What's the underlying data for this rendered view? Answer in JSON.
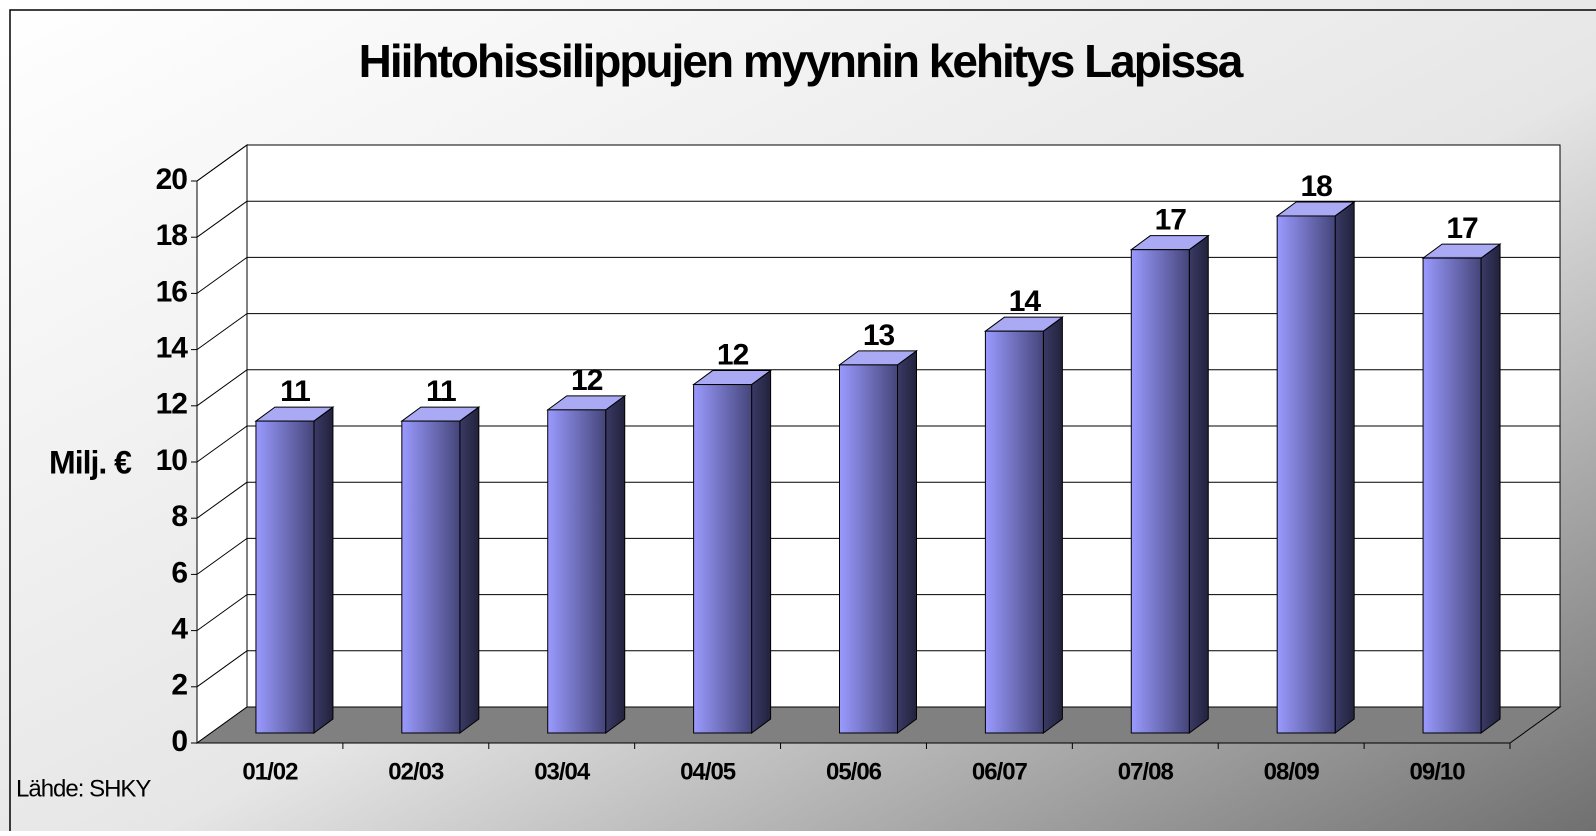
{
  "chart_data": {
    "type": "bar3d",
    "title": "Hiihtohissilippujen myynnin kehitys Lapissa",
    "ylabel": "Milj. €",
    "source": "Lähde: SHKY",
    "categories": [
      "01/02",
      "02/03",
      "03/04",
      "04/05",
      "05/06",
      "06/07",
      "07/08",
      "08/09",
      "09/10"
    ],
    "values": [
      11.1,
      11.1,
      11.5,
      12.4,
      13.1,
      14.3,
      17.2,
      18.4,
      16.9
    ],
    "value_labels": [
      "11",
      "11",
      "12",
      "12",
      "13",
      "14",
      "17",
      "18",
      "17"
    ],
    "color": "#8c8cf0",
    "ylim": [
      0,
      20
    ],
    "yticks": [
      0,
      2,
      4,
      6,
      8,
      10,
      12,
      14,
      16,
      18,
      20
    ],
    "grid": true
  }
}
